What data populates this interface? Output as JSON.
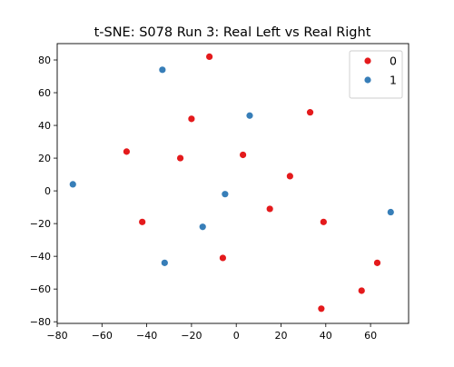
{
  "chart_data": {
    "type": "scatter",
    "title": "t-SNE: S078 Run 3: Real Left vs Real Right",
    "xlabel": "",
    "ylabel": "",
    "xlim": [
      -80,
      77
    ],
    "ylim": [
      -81,
      90
    ],
    "xticks": [
      -80,
      -60,
      -40,
      -20,
      0,
      20,
      40,
      60
    ],
    "yticks": [
      -80,
      -60,
      -40,
      -20,
      0,
      20,
      40,
      60,
      80
    ],
    "grid": false,
    "legend_position": "top-right",
    "series": [
      {
        "name": "0",
        "color": "#e41a1c",
        "points": [
          {
            "x": -12,
            "y": 82
          },
          {
            "x": -20,
            "y": 44
          },
          {
            "x": -49,
            "y": 24
          },
          {
            "x": -25,
            "y": 20
          },
          {
            "x": 3,
            "y": 22
          },
          {
            "x": 33,
            "y": 48
          },
          {
            "x": 24,
            "y": 9
          },
          {
            "x": 15,
            "y": -11
          },
          {
            "x": -42,
            "y": -19
          },
          {
            "x": 39,
            "y": -19
          },
          {
            "x": -6,
            "y": -41
          },
          {
            "x": 63,
            "y": -44
          },
          {
            "x": 56,
            "y": -61
          },
          {
            "x": 38,
            "y": -72
          }
        ]
      },
      {
        "name": "1",
        "color": "#377eb8",
        "points": [
          {
            "x": -33,
            "y": 74
          },
          {
            "x": 6,
            "y": 46
          },
          {
            "x": -73,
            "y": 4
          },
          {
            "x": -5,
            "y": -2
          },
          {
            "x": -15,
            "y": -22
          },
          {
            "x": -32,
            "y": -44
          },
          {
            "x": 69,
            "y": -13
          }
        ]
      }
    ]
  }
}
